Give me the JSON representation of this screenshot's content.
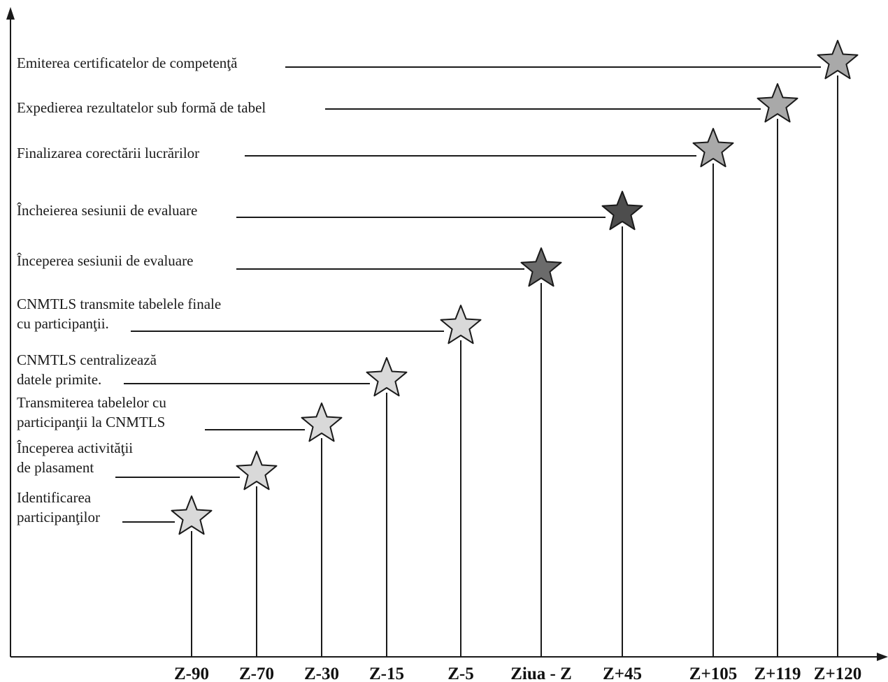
{
  "milestones": [
    {
      "tick": "Z-90",
      "label_lines": [
        "Identificarea",
        "participanţilor"
      ],
      "fill": "#d9d9d9"
    },
    {
      "tick": "Z-70",
      "label_lines": [
        "Începerea activităţii",
        "de plasament"
      ],
      "fill": "#d9d9d9"
    },
    {
      "tick": "Z-30",
      "label_lines": [
        "Transmiterea tabelelor cu",
        "participanţii la CNMTLS"
      ],
      "fill": "#d9d9d9"
    },
    {
      "tick": "Z-15",
      "label_lines": [
        "CNMTLS centralizează",
        "datele primite."
      ],
      "fill": "#d9d9d9"
    },
    {
      "tick": "Z-5",
      "label_lines": [
        "CNMTLS transmite tabelele finale",
        "cu participanţii."
      ],
      "fill": "#d9d9d9"
    },
    {
      "tick": "Ziua - Z",
      "label_lines": [
        "Începerea sesiunii de evaluare"
      ],
      "fill": "#6b6b6b"
    },
    {
      "tick": "Z+45",
      "label_lines": [
        "Încheierea sesiunii de evaluare"
      ],
      "fill": "#4d4d4d"
    },
    {
      "tick": "Z+105",
      "label_lines": [
        "Finalizarea corectării lucrărilor"
      ],
      "fill": "#a9a9a9"
    },
    {
      "tick": "Z+119",
      "label_lines": [
        "Expedierea rezultatelor sub formă de tabel"
      ],
      "fill": "#a9a9a9"
    },
    {
      "tick": "Z+120",
      "label_lines": [
        "Emiterea certificatelor de competenţă"
      ],
      "fill": "#a9a9a9"
    }
  ],
  "colors": {
    "line": "#1a1a1a",
    "star_stroke": "#1a1a1a"
  }
}
